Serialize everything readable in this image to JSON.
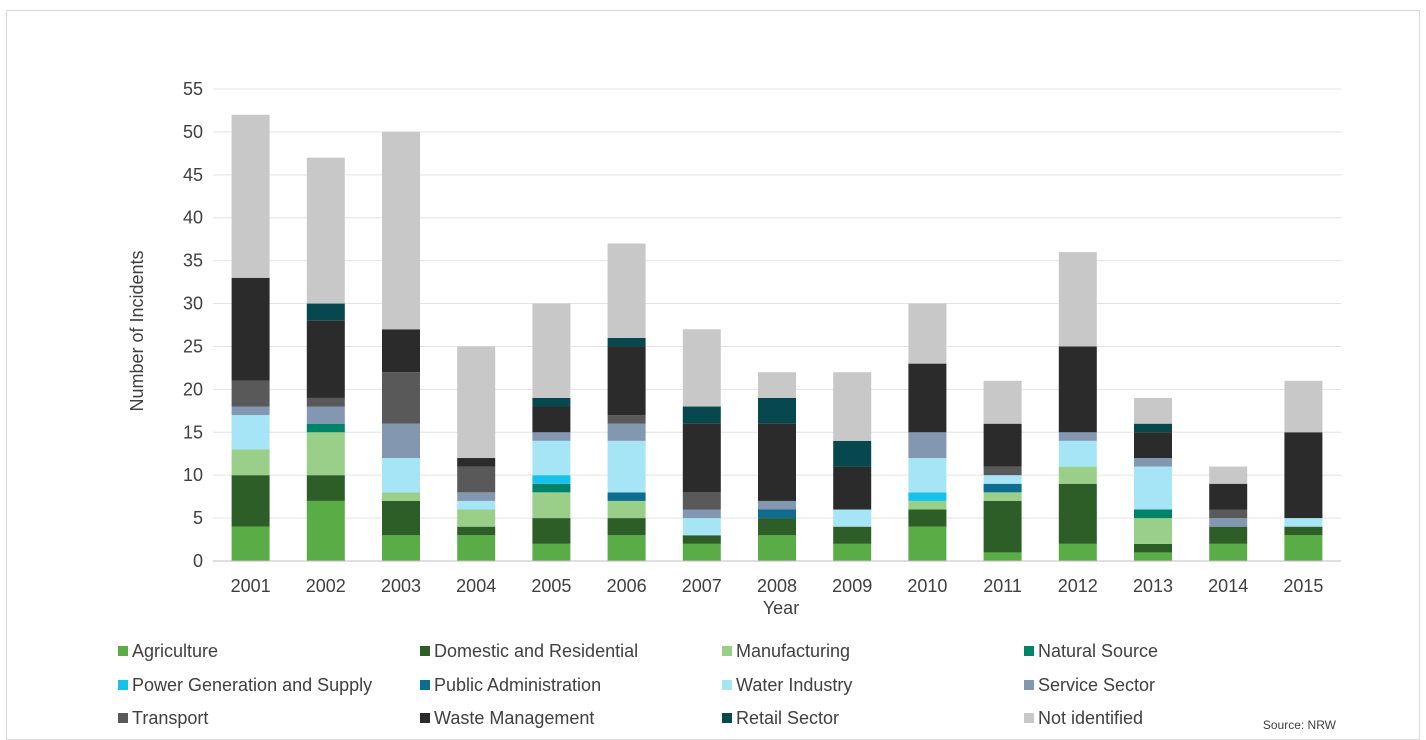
{
  "chart_data": {
    "type": "bar",
    "stacked": true,
    "title": "",
    "xlabel": "Year",
    "ylabel": "Number of Incidents",
    "ylim": [
      0,
      55
    ],
    "yticks": [
      0,
      5,
      10,
      15,
      20,
      25,
      30,
      35,
      40,
      45,
      50,
      55
    ],
    "grid": true,
    "legend_position": "bottom",
    "categories": [
      "2001",
      "2002",
      "2003",
      "2004",
      "2005",
      "2006",
      "2007",
      "2008",
      "2009",
      "2010",
      "2011",
      "2012",
      "2013",
      "2014",
      "2015"
    ],
    "series": [
      {
        "name": "Agriculture",
        "color": "#5aad46",
        "values": [
          4,
          7,
          3,
          3,
          2,
          3,
          2,
          3,
          2,
          4,
          1,
          2,
          1,
          2,
          3
        ]
      },
      {
        "name": "Domestic and Residential",
        "color": "#2e5e27",
        "values": [
          6,
          3,
          4,
          1,
          3,
          2,
          1,
          2,
          2,
          2,
          6,
          7,
          1,
          2,
          1
        ]
      },
      {
        "name": "Manufacturing",
        "color": "#99cf88",
        "values": [
          3,
          5,
          1,
          2,
          3,
          2,
          0,
          0,
          0,
          1,
          1,
          2,
          3,
          0,
          0
        ]
      },
      {
        "name": "Natural Source",
        "color": "#00836b",
        "values": [
          0,
          1,
          0,
          0,
          1,
          0,
          0,
          0,
          0,
          0,
          0,
          0,
          1,
          0,
          0
        ]
      },
      {
        "name": "Power Generation and Supply",
        "color": "#16c1ea",
        "values": [
          0,
          0,
          0,
          0,
          1,
          0,
          0,
          0,
          0,
          1,
          0,
          0,
          0,
          0,
          0
        ]
      },
      {
        "name": "Public Administration",
        "color": "#0d6d90",
        "values": [
          0,
          0,
          0,
          0,
          0,
          1,
          0,
          1,
          0,
          0,
          1,
          0,
          0,
          0,
          0
        ]
      },
      {
        "name": "Water Industry",
        "color": "#a6e5f6",
        "values": [
          4,
          0,
          4,
          1,
          4,
          6,
          2,
          0,
          2,
          4,
          1,
          3,
          5,
          0,
          1
        ]
      },
      {
        "name": "Service Sector",
        "color": "#8497b0",
        "values": [
          1,
          2,
          4,
          1,
          1,
          2,
          1,
          1,
          0,
          3,
          0,
          1,
          1,
          1,
          0
        ]
      },
      {
        "name": "Transport",
        "color": "#595959",
        "values": [
          3,
          1,
          6,
          3,
          0,
          1,
          2,
          0,
          0,
          0,
          1,
          0,
          0,
          1,
          0
        ]
      },
      {
        "name": "Waste Management",
        "color": "#2b2b2b",
        "values": [
          12,
          9,
          5,
          1,
          3,
          8,
          8,
          9,
          5,
          8,
          5,
          10,
          3,
          3,
          10
        ]
      },
      {
        "name": "Retail Sector",
        "color": "#06484d",
        "values": [
          0,
          2,
          0,
          0,
          1,
          1,
          2,
          3,
          3,
          0,
          0,
          0,
          1,
          0,
          0
        ]
      },
      {
        "name": "Not identified",
        "color": "#c8c8c8",
        "values": [
          19,
          17,
          23,
          13,
          11,
          11,
          9,
          3,
          8,
          7,
          5,
          11,
          3,
          2,
          6
        ]
      }
    ],
    "source": "Source:  NRW"
  },
  "colors": {
    "grid": "#e3e3e3",
    "axis": "#bfbfbf",
    "text": "#404040",
    "frame": "#d9d9d9"
  }
}
